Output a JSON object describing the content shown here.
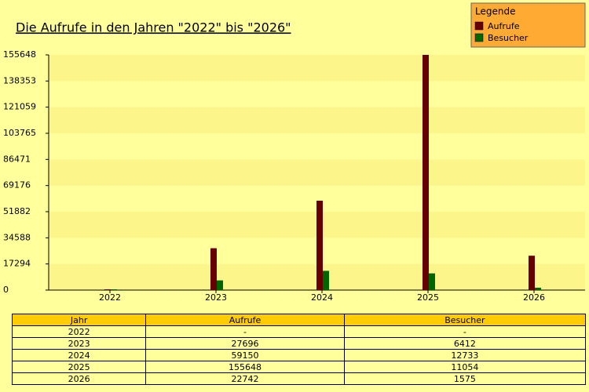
{
  "chart_data": {
    "type": "bar",
    "title": "Die Aufrufe in den Jahren \"2022\" bis \"2026\"",
    "legend_title": "Legende",
    "legend_position": "top-right",
    "categories": [
      "2022",
      "2023",
      "2024",
      "2025",
      "2026"
    ],
    "series": [
      {
        "name": "Aufrufe",
        "color": "#660000",
        "values": [
          0,
          27696,
          59150,
          155648,
          22742
        ]
      },
      {
        "name": "Besucher",
        "color": "#006600",
        "values": [
          0,
          6412,
          12733,
          11054,
          1575
        ]
      }
    ],
    "ylim": [
      0,
      155648
    ],
    "yticks": [
      0,
      17294,
      34588,
      51882,
      69176,
      86471,
      103765,
      121059,
      138353,
      155648
    ],
    "grid": true
  },
  "table": {
    "header": [
      "Jahr",
      "Aufrufe",
      "Besucher"
    ],
    "rows": [
      [
        "2022",
        "-",
        "-"
      ],
      [
        "2023",
        27696,
        6412
      ],
      [
        "2024",
        59150,
        12733
      ],
      [
        "2025",
        155648,
        11054
      ],
      [
        "2026",
        22742,
        1575
      ]
    ]
  }
}
